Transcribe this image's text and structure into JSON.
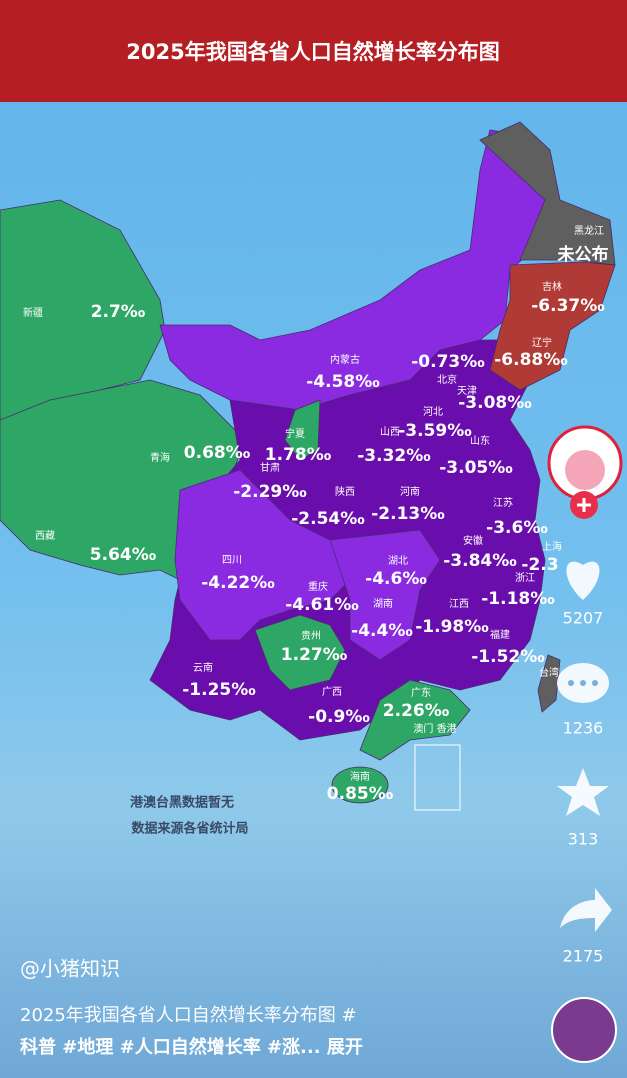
{
  "header": {
    "title": "2025年我国各省人口自然增长率分布图"
  },
  "regions": [
    {
      "name": "新疆",
      "value": "2.7‰"
    },
    {
      "name": "青海",
      "value": "0.68‰"
    },
    {
      "name": "西藏",
      "value": "5.64‰"
    },
    {
      "name": "内蒙古",
      "value": "-4.58‰"
    },
    {
      "name": "宁夏",
      "value": "1.78‰"
    },
    {
      "name": "甘肃",
      "value": "-2.29‰"
    },
    {
      "name": "陕西",
      "value": "-2.54‰"
    },
    {
      "name": "山西",
      "value": "-3.32‰"
    },
    {
      "name": "河北",
      "value": "-3.59‰"
    },
    {
      "name": "北京",
      "value": "-0.73‰"
    },
    {
      "name": "天津",
      "value": "-3.08‰"
    },
    {
      "name": "山东",
      "value": "-3.05‰"
    },
    {
      "name": "河南",
      "value": "-2.13‰"
    },
    {
      "name": "江苏",
      "value": "-3.6‰"
    },
    {
      "name": "安徽",
      "value": "-3.84‰"
    },
    {
      "name": "上海",
      "value": "-2.3"
    },
    {
      "name": "湖北",
      "value": "-4.6‰"
    },
    {
      "name": "四川",
      "value": "-4.22‰"
    },
    {
      "name": "重庆",
      "value": "-4.61‰"
    },
    {
      "name": "湖南",
      "value": "-4.4‰"
    },
    {
      "name": "江西",
      "value": "-1.98‰"
    },
    {
      "name": "浙江",
      "value": "-1.18‰"
    },
    {
      "name": "福建",
      "value": "-1.52‰"
    },
    {
      "name": "贵州",
      "value": "1.27‰"
    },
    {
      "name": "云南",
      "value": "-1.25‰"
    },
    {
      "name": "广西",
      "value": "-0.9‰"
    },
    {
      "name": "广东",
      "value": "2.26‰"
    },
    {
      "name": "海南",
      "value": "0.85‰"
    },
    {
      "name": "吉林",
      "value": "-6.37‰"
    },
    {
      "name": "辽宁",
      "value": "-6.88‰"
    },
    {
      "name": "黑龙江",
      "value": "未公布"
    },
    {
      "name": "台湾"
    },
    {
      "name": "澳门 香港"
    }
  ],
  "notes": [
    "港澳台黑数据暂无",
    "数据来源各省统计局"
  ],
  "actions": {
    "likes": "5207",
    "comments": "1236",
    "favorites": "313",
    "shares": "2175"
  },
  "post": {
    "author": "@小猪知识",
    "caption": [
      "2025年我国各省人口自然增长率分布图 #",
      "科普 #地理 #人口自然增长率 #涨... 展开"
    ]
  }
}
